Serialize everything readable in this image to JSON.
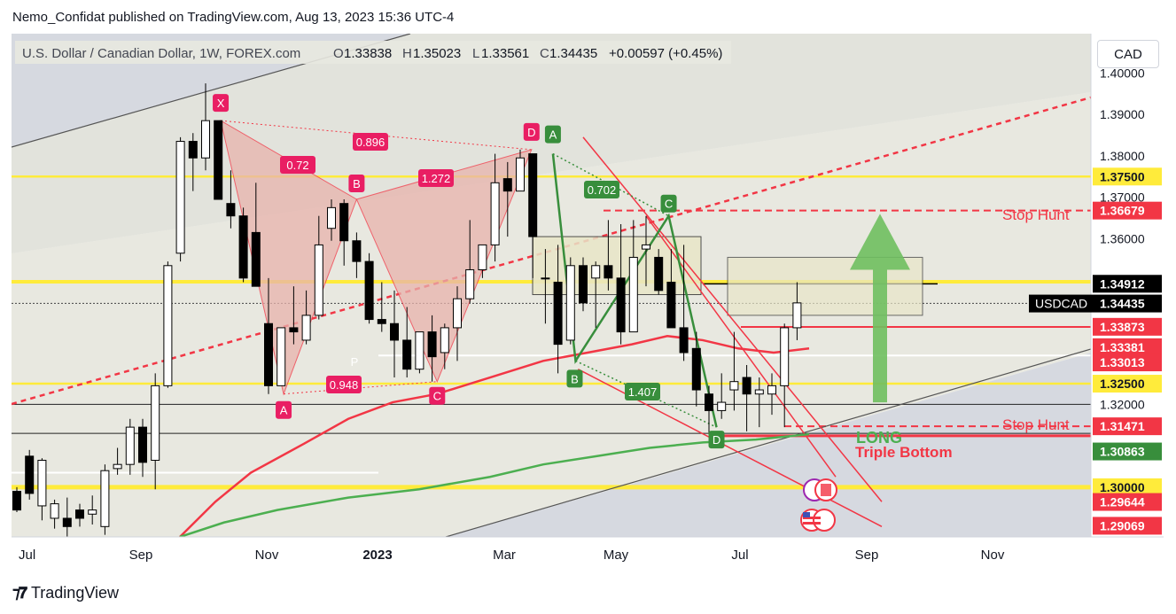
{
  "publisher_line": "Nemo_Confidat published on TradingView.com, Aug 13, 2023 15:36 UTC-4",
  "footer_logo": "TradingView",
  "currency_button": "CAD",
  "header": {
    "symbol": "U.S. Dollar / Canadian Dollar, 1W, FOREX.com",
    "o_label": "O",
    "o_value": "1.33838",
    "h_label": "H",
    "h_value": "1.35023",
    "l_label": "L",
    "l_value": "1.33561",
    "c_label": "C",
    "c_value": "1.34435",
    "change": "+0.00597 (+0.45%)"
  },
  "colors": {
    "bull": "#ffffff",
    "bear": "#000000",
    "yellow": "#ffeb3b",
    "red": "#f23645",
    "green": "#388e3c",
    "pattern_fill": "#e8b3ad",
    "bg_channel": "#e4e4dc"
  },
  "chart_data": {
    "type": "candlestick",
    "timeframe": "1W",
    "ylim": [
      1.288,
      1.4095
    ],
    "y_ticks": [
      "1.40000",
      "1.39000",
      "1.38000",
      "1.37000",
      "1.36000",
      "1.32000"
    ],
    "x_ticks": [
      "Jul",
      "Sep",
      "Nov",
      "2023",
      "Mar",
      "May",
      "Jul",
      "Sep",
      "Nov"
    ],
    "price_labels": [
      {
        "text": "1.37500",
        "kind": "yellow"
      },
      {
        "text": "1.36679",
        "kind": "red"
      },
      {
        "text": "1.34912",
        "kind": "black"
      },
      {
        "text": "1.34435",
        "kind": "black",
        "tag": "USDCAD"
      },
      {
        "text": "1.33873",
        "kind": "red"
      },
      {
        "text": "1.33381",
        "kind": "red"
      },
      {
        "text": "1.33013",
        "kind": "red"
      },
      {
        "text": "1.32500",
        "kind": "yellow"
      },
      {
        "text": "1.31471",
        "kind": "red"
      },
      {
        "text": "1.30863",
        "kind": "green"
      },
      {
        "text": "1.30000",
        "kind": "yellow"
      },
      {
        "text": "1.29644",
        "kind": "red"
      },
      {
        "text": "1.29069",
        "kind": "red"
      }
    ],
    "candles": [
      [
        1.299,
        1.2945,
        1.3,
        1.294
      ],
      [
        1.3075,
        1.2985,
        1.309,
        1.297
      ],
      [
        1.2955,
        1.3065,
        1.307,
        1.292
      ],
      [
        1.2925,
        1.296,
        1.297,
        1.29
      ],
      [
        1.2925,
        1.2905,
        1.2975,
        1.2865
      ],
      [
        1.2945,
        1.2925,
        1.296,
        1.2905
      ],
      [
        1.2935,
        1.2945,
        1.298,
        1.291
      ],
      [
        1.2905,
        1.304,
        1.3055,
        1.2885
      ],
      [
        1.3045,
        1.3055,
        1.3095,
        1.303
      ],
      [
        1.3055,
        1.3145,
        1.3165,
        1.303
      ],
      [
        1.3145,
        1.306,
        1.3165,
        1.3025
      ],
      [
        1.3065,
        1.3245,
        1.3275,
        1.2995
      ],
      [
        1.3245,
        1.3535,
        1.3545,
        1.324
      ],
      [
        1.3565,
        1.3835,
        1.3845,
        1.3545
      ],
      [
        1.3835,
        1.3795,
        1.3855,
        1.3715
      ],
      [
        1.3795,
        1.3885,
        1.3975,
        1.3765
      ],
      [
        1.3885,
        1.3695,
        1.3885,
        1.3695
      ],
      [
        1.3685,
        1.3655,
        1.3765,
        1.3625
      ],
      [
        1.3655,
        1.3505,
        1.3675,
        1.3495
      ],
      [
        1.3615,
        1.3485,
        1.3735,
        1.3495
      ],
      [
        1.3395,
        1.3245,
        1.3505,
        1.3225
      ],
      [
        1.3245,
        1.3385,
        1.3385,
        1.3255
      ],
      [
        1.3385,
        1.3375,
        1.3485,
        1.3345
      ],
      [
        1.3355,
        1.3415,
        1.3475,
        1.3345
      ],
      [
        1.3415,
        1.3585,
        1.3655,
        1.3405
      ],
      [
        1.3625,
        1.3675,
        1.3695,
        1.3595
      ],
      [
        1.3685,
        1.3595,
        1.3695,
        1.3535
      ],
      [
        1.3595,
        1.3545,
        1.3615,
        1.3505
      ],
      [
        1.3545,
        1.3405,
        1.3565,
        1.3395
      ],
      [
        1.3405,
        1.3395,
        1.3495,
        1.3375
      ],
      [
        1.3395,
        1.3355,
        1.3475,
        1.3265
      ],
      [
        1.3355,
        1.3285,
        1.3435,
        1.3265
      ],
      [
        1.3285,
        1.3375,
        1.3375,
        1.3275
      ],
      [
        1.3375,
        1.3315,
        1.3415,
        1.3255
      ],
      [
        1.3325,
        1.3385,
        1.3395,
        1.3285
      ],
      [
        1.3385,
        1.3455,
        1.3485,
        1.3305
      ],
      [
        1.3455,
        1.3525,
        1.3645,
        1.3445
      ],
      [
        1.3525,
        1.3585,
        1.3585,
        1.3505
      ],
      [
        1.3585,
        1.3735,
        1.3805,
        1.3545
      ],
      [
        1.3745,
        1.3715,
        1.3785,
        1.3605
      ],
      [
        1.3715,
        1.3795,
        1.3815,
        1.3715
      ],
      [
        1.3805,
        1.3605,
        1.3805,
        1.3505
      ],
      [
        1.3505,
        1.3505,
        1.3575,
        1.3395
      ],
      [
        1.3495,
        1.3345,
        1.3585,
        1.3275
      ],
      [
        1.3355,
        1.3535,
        1.3555,
        1.3345
      ],
      [
        1.3535,
        1.3445,
        1.3555,
        1.3425
      ],
      [
        1.3505,
        1.3535,
        1.3545,
        1.3385
      ],
      [
        1.3535,
        1.3505,
        1.3645,
        1.3475
      ],
      [
        1.3505,
        1.3375,
        1.3635,
        1.3345
      ],
      [
        1.3375,
        1.3555,
        1.3645,
        1.3375
      ],
      [
        1.3575,
        1.3585,
        1.3655,
        1.3485
      ],
      [
        1.3555,
        1.3475,
        1.3575,
        1.3465
      ],
      [
        1.3495,
        1.3385,
        1.3575,
        1.3385
      ],
      [
        1.3385,
        1.3325,
        1.3585,
        1.3305
      ],
      [
        1.3335,
        1.3235,
        1.3375,
        1.3195
      ],
      [
        1.3225,
        1.3185,
        1.3245,
        1.3125
      ],
      [
        1.3185,
        1.3205,
        1.3275,
        1.3165
      ],
      [
        1.3235,
        1.3255,
        1.3375,
        1.3185
      ],
      [
        1.3265,
        1.3225,
        1.3295,
        1.3135
      ],
      [
        1.3225,
        1.3235,
        1.3265,
        1.3145
      ],
      [
        1.3225,
        1.3245,
        1.3275,
        1.3175
      ],
      [
        1.3245,
        1.3385,
        1.3395,
        1.3145
      ],
      [
        1.3385,
        1.3445,
        1.3495,
        1.3355
      ]
    ],
    "pattern_labels": [
      {
        "text": "X",
        "kind": "red"
      },
      {
        "text": "A",
        "kind": "red"
      },
      {
        "text": "B",
        "kind": "red"
      },
      {
        "text": "C",
        "kind": "red"
      },
      {
        "text": "D",
        "kind": "red"
      },
      {
        "text": "0.72",
        "kind": "red"
      },
      {
        "text": "0.896",
        "kind": "red"
      },
      {
        "text": "1.272",
        "kind": "red"
      },
      {
        "text": "0.948",
        "kind": "red"
      },
      {
        "text": "A",
        "kind": "green"
      },
      {
        "text": "B",
        "kind": "green"
      },
      {
        "text": "C",
        "kind": "green"
      },
      {
        "text": "D",
        "kind": "green"
      },
      {
        "text": "0.702",
        "kind": "green"
      },
      {
        "text": "1.407",
        "kind": "green"
      },
      {
        "text": "P",
        "kind": "plain"
      }
    ],
    "annotations": [
      {
        "text": "Stop Hunt"
      },
      {
        "text": "Stop Hunt"
      },
      {
        "text": "LONG"
      },
      {
        "text": "Triple Bottom"
      }
    ]
  }
}
